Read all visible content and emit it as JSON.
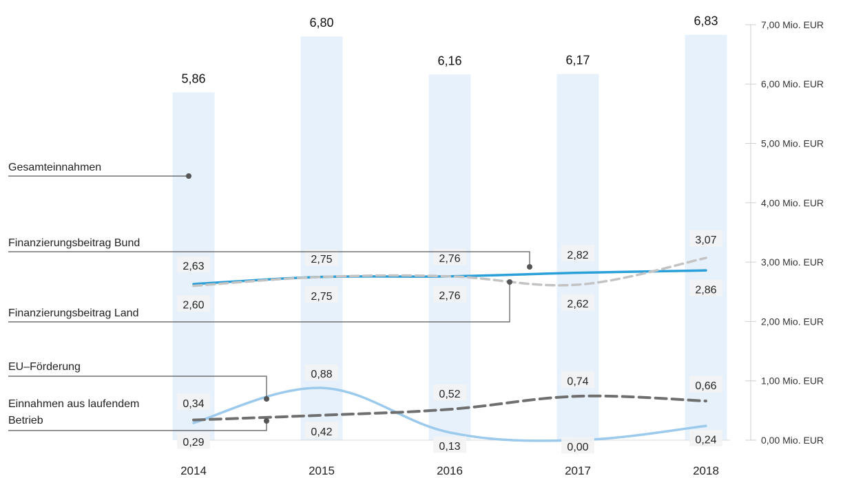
{
  "chart_data": {
    "type": "bar",
    "categories": [
      "2014",
      "2015",
      "2016",
      "2017",
      "2018"
    ],
    "ylim": [
      0,
      7
    ],
    "y_ticks": [
      {
        "value": 0,
        "label": "0,00 Mio. EUR"
      },
      {
        "value": 1,
        "label": "1,00 Mio. EUR"
      },
      {
        "value": 2,
        "label": "2,00 Mio. EUR"
      },
      {
        "value": 3,
        "label": "3,00 Mio. EUR"
      },
      {
        "value": 4,
        "label": "4,00 Mio. EUR"
      },
      {
        "value": 5,
        "label": "5,00 Mio. EUR"
      },
      {
        "value": 6,
        "label": "6,00 Mio. EUR"
      },
      {
        "value": 7,
        "label": "7,00 Mio. EUR"
      }
    ],
    "y_axis_position": "right",
    "legend_placement": "left",
    "grid": false,
    "series": [
      {
        "name": "Gesamteinnahmen",
        "kind": "bar",
        "color": "#e6f1fb",
        "values": [
          5.86,
          6.8,
          6.16,
          6.17,
          6.83
        ],
        "labels": [
          "5,86",
          "6,80",
          "6,16",
          "6,17",
          "6,83"
        ]
      },
      {
        "name": "Finanzierungsbeitrag Bund",
        "kind": "line",
        "style": "solid",
        "color": "#2a9fd8",
        "values": [
          2.63,
          2.75,
          2.76,
          2.82,
          2.86
        ],
        "labels": [
          "2,63",
          "2,75",
          "2,76",
          "2,82",
          "2,86"
        ]
      },
      {
        "name": "Finanzierungsbeitrag Land",
        "kind": "line",
        "style": "dashed",
        "color": "#c3c3c3",
        "values": [
          2.6,
          2.75,
          2.76,
          2.62,
          3.07
        ],
        "labels": [
          "2,60",
          "2,75",
          "2,76",
          "2,62",
          "3,07"
        ]
      },
      {
        "name": "EU–Förderung",
        "kind": "line",
        "style": "solid",
        "color": "#9ccaec",
        "values": [
          0.29,
          0.88,
          0.13,
          0.0,
          0.24
        ],
        "labels": [
          "0,29",
          "0,88",
          "0,13",
          "0,00",
          "0,24"
        ]
      },
      {
        "name": "Einnahmen aus laufendem Betrieb",
        "kind": "line",
        "style": "dashed",
        "color": "#6f6f6f",
        "values": [
          0.34,
          0.42,
          0.52,
          0.74,
          0.66
        ],
        "labels": [
          "0,34",
          "0,42",
          "0,52",
          "0,74",
          "0,66"
        ]
      }
    ]
  },
  "legend": {
    "gesamt": "Gesamteinnahmen",
    "bund": "Finanzierungsbeitrag Bund",
    "land": "Finanzierungsbeitrag Land",
    "eu": "EU–Förderung",
    "betrieb_line1": "Einnahmen aus laufendem",
    "betrieb_line2": "Betrieb"
  }
}
